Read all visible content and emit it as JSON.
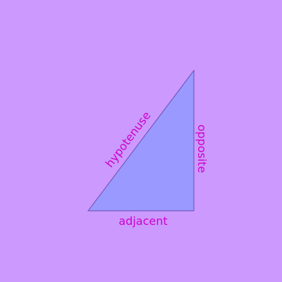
{
  "diagram": {
    "labels": {
      "hypotenuse": "hypotenuse",
      "opposite": "opposite",
      "adjacent": "adjacent"
    },
    "colors": {
      "background": "#cc99ff",
      "triangle_fill": "#9999ff",
      "triangle_stroke": "#6a4fb0",
      "label": "#cc00cc"
    }
  }
}
